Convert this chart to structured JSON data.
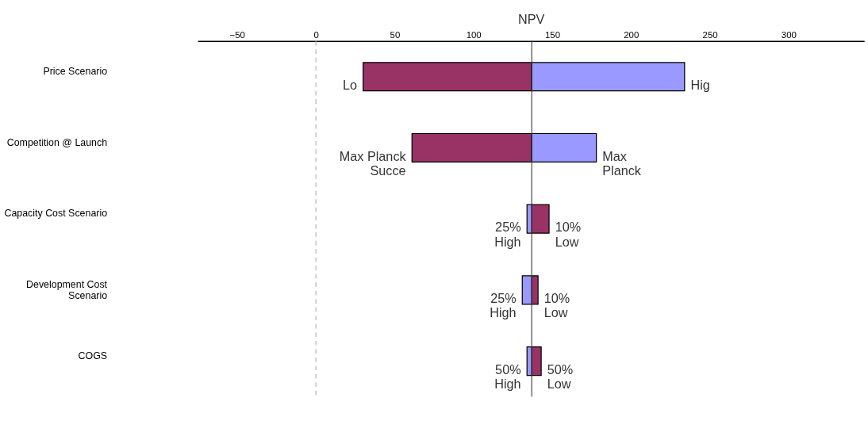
{
  "chart_data": {
    "type": "bar",
    "orientation": "horizontal",
    "xlabel": "NPV",
    "categories": [
      "Price Scenario",
      "Competition @ Launch",
      "Capacity Cost Scenario",
      "Development Cost\nScenario",
      "COGS"
    ],
    "series": [
      {
        "color": "#993366",
        "base": [
          30,
          61,
          137,
          137,
          137
        ],
        "values": [
          107,
          76,
          11,
          4,
          6
        ]
      },
      {
        "color": "#9999ff",
        "base": [
          137,
          137,
          134,
          131,
          134
        ],
        "values": [
          97,
          41,
          3,
          6,
          3
        ]
      }
    ],
    "annotations": [
      {
        "text": "Lo",
        "x": 30,
        "y": "Price Scenario"
      },
      {
        "text": "Hig",
        "x": 234,
        "y": "Price Scenario"
      },
      {
        "text": "Max Planck\nSucce",
        "x": 61,
        "y": "Competition @ Launch"
      },
      {
        "text": "Max\nPlanck",
        "x": 178,
        "y": "Competition @ Launch"
      },
      {
        "text": "25%\nHigh",
        "x": 134,
        "y": "Capacity Cost Scenario"
      },
      {
        "text": "10%\nLow",
        "x": 148,
        "y": "Capacity Cost Scenario"
      },
      {
        "text": "25%\nHigh",
        "x": 131,
        "y": "Development Cost\nScenario"
      },
      {
        "text": "10%\nLow",
        "x": 141,
        "y": "Development Cost\nScenario"
      },
      {
        "text": "50%\nHigh",
        "x": 134,
        "y": "COGS"
      },
      {
        "text": "50%\nLow",
        "x": 143,
        "y": "COGS"
      }
    ],
    "xlim": [
      -75,
      348
    ],
    "xticks": [
      -50,
      0,
      50,
      100,
      150,
      200,
      250,
      300
    ],
    "ref_lines": [
      {
        "axis": "x",
        "value": 137,
        "color": "#404040",
        "line_style": "solid"
      },
      {
        "axis": "x",
        "value": 0,
        "color": "#b0b0b0",
        "line_style": "dashed"
      }
    ],
    "grid": false
  }
}
